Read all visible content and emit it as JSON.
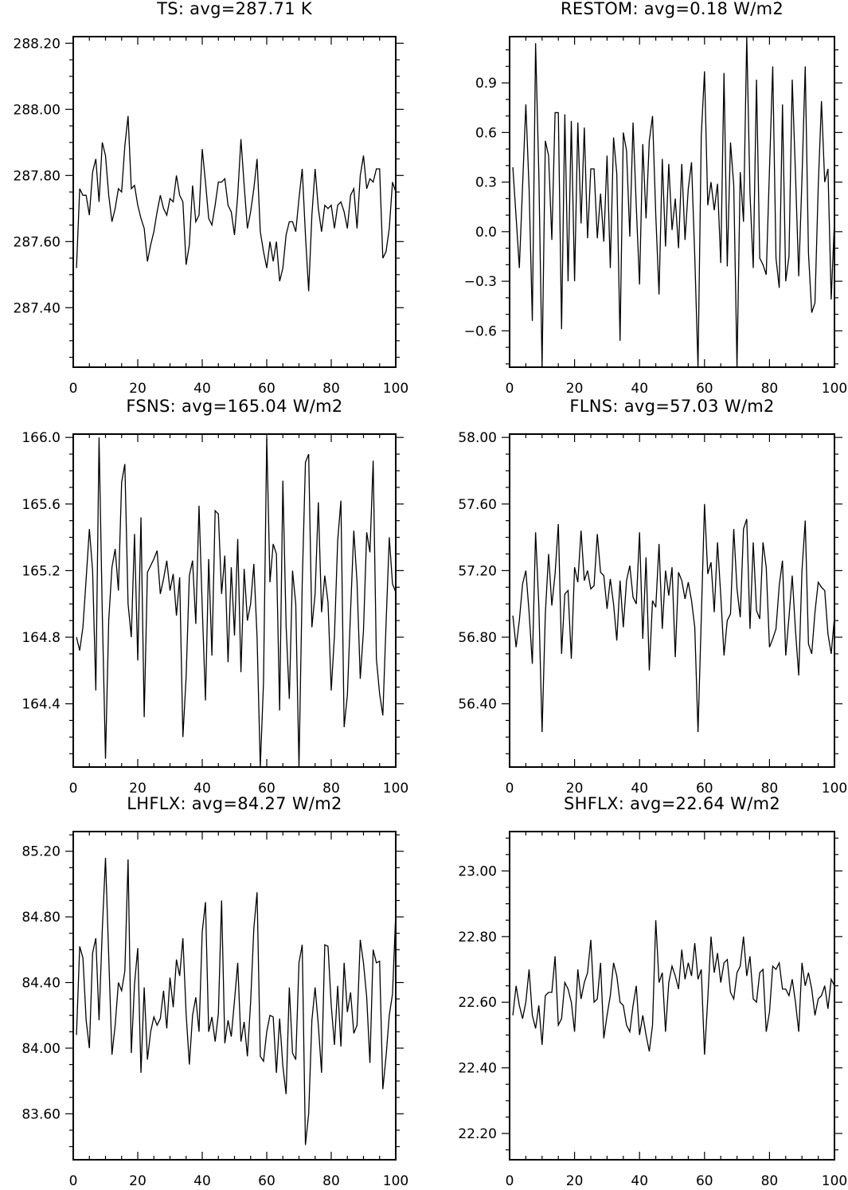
{
  "chart_data": [
    {
      "type": "line",
      "title": "TS: avg=287.71 K",
      "xlabel": "",
      "ylabel": "",
      "xlim": [
        0,
        100
      ],
      "ylim": [
        287.22,
        288.22
      ],
      "xticks": [
        0,
        20,
        40,
        60,
        80,
        100
      ],
      "xtick_labels": [
        "0",
        "20",
        "40",
        "60",
        "80",
        "100"
      ],
      "xminor": 5,
      "yticks": [
        287.4,
        287.6,
        287.8,
        288.0,
        288.2
      ],
      "ytick_labels": [
        "287.40",
        "287.60",
        "287.80",
        "288.00",
        "288.20"
      ],
      "yminor": 0.05,
      "grid": false,
      "series": [
        {
          "x_start": 1,
          "values": [
            287.52,
            287.76,
            287.74,
            287.74,
            287.68,
            287.81,
            287.85,
            287.72,
            287.9,
            287.86,
            287.74,
            287.66,
            287.7,
            287.76,
            287.75,
            287.89,
            287.98,
            287.76,
            287.77,
            287.71,
            287.67,
            287.64,
            287.54,
            287.59,
            287.63,
            287.69,
            287.74,
            287.7,
            287.68,
            287.73,
            287.72,
            287.8,
            287.74,
            287.72,
            287.53,
            287.59,
            287.77,
            287.66,
            287.68,
            287.88,
            287.78,
            287.67,
            287.65,
            287.71,
            287.78,
            287.78,
            287.79,
            287.71,
            287.69,
            287.62,
            287.74,
            287.91,
            287.77,
            287.64,
            287.69,
            287.76,
            287.85,
            287.63,
            287.57,
            287.52,
            287.6,
            287.54,
            287.6,
            287.48,
            287.52,
            287.62,
            287.66,
            287.66,
            287.63,
            287.73,
            287.82,
            287.62,
            287.45,
            287.68,
            287.82,
            287.7,
            287.63,
            287.71,
            287.7,
            287.71,
            287.64,
            287.71,
            287.72,
            287.69,
            287.64,
            287.74,
            287.76,
            287.64,
            287.8,
            287.86,
            287.76,
            287.79,
            287.78,
            287.82,
            287.82,
            287.55,
            287.57,
            287.64,
            287.78,
            287.75,
            287.81,
            287.64
          ]
        }
      ]
    },
    {
      "type": "line",
      "title": "RESTOM: avg=0.18 W/m2",
      "xlabel": "",
      "ylabel": "",
      "xlim": [
        0,
        100
      ],
      "ylim": [
        -0.82,
        1.18
      ],
      "xticks": [
        0,
        20,
        40,
        60,
        80,
        100
      ],
      "xtick_labels": [
        "0",
        "20",
        "40",
        "60",
        "80",
        "100"
      ],
      "xminor": 5,
      "yticks": [
        -0.6,
        -0.3,
        0.0,
        0.3,
        0.6,
        0.9
      ],
      "ytick_labels": [
        "−0.6",
        "−0.3",
        "0.0",
        "0.3",
        "0.6",
        "0.9"
      ],
      "yminor": 0.1,
      "grid": false,
      "series": [
        {
          "x_start": 1,
          "values": [
            0.39,
            0.09,
            -0.22,
            0.28,
            0.77,
            0.26,
            -0.54,
            1.14,
            0.35,
            -0.82,
            0.55,
            0.46,
            -0.05,
            0.72,
            0.72,
            -0.59,
            0.71,
            -0.3,
            0.67,
            -0.3,
            0.66,
            0.05,
            0.63,
            -0.04,
            0.38,
            0.38,
            -0.04,
            0.23,
            -0.06,
            0.46,
            -0.22,
            0.57,
            0.35,
            -0.66,
            0.6,
            0.49,
            -0.03,
            0.66,
            0.15,
            -0.32,
            0.53,
            0.08,
            0.55,
            0.7,
            0.1,
            -0.38,
            0.44,
            -0.09,
            0.41,
            0.01,
            0.2,
            -0.1,
            0.41,
            -0.05,
            0.26,
            0.42,
            -0.15,
            -0.82,
            0.58,
            0.97,
            0.16,
            0.3,
            0.13,
            0.29,
            -0.19,
            0.96,
            -0.21,
            0.54,
            0.28,
            -0.82,
            0.36,
            0.06,
            1.18,
            0.23,
            -0.22,
            0.92,
            -0.16,
            -0.2,
            -0.26,
            0.38,
            1.0,
            -0.16,
            -0.34,
            0.77,
            -0.3,
            -0.15,
            0.92,
            0.35,
            -0.27,
            0.32,
            1.0,
            -0.13,
            -0.49,
            -0.43,
            0.27,
            0.79,
            0.3,
            0.38,
            -0.41,
            0.07,
            0.23
          ]
        }
      ]
    },
    {
      "type": "line",
      "title": "FSNS: avg=165.04 W/m2",
      "xlabel": "",
      "ylabel": "",
      "xlim": [
        0,
        100
      ],
      "ylim": [
        164.02,
        166.02
      ],
      "xticks": [
        0,
        20,
        40,
        60,
        80,
        100
      ],
      "xtick_labels": [
        "0",
        "20",
        "40",
        "60",
        "80",
        "100"
      ],
      "xminor": 5,
      "yticks": [
        164.4,
        164.8,
        165.2,
        165.6,
        166.0
      ],
      "ytick_labels": [
        "164.4",
        "164.8",
        "165.2",
        "165.6",
        "166.0"
      ],
      "yminor": 0.1,
      "grid": false,
      "series": [
        {
          "x_start": 1,
          "values": [
            164.8,
            164.72,
            164.86,
            165.15,
            165.45,
            165.2,
            164.48,
            166.0,
            164.95,
            164.07,
            164.9,
            165.22,
            165.33,
            165.08,
            165.73,
            165.84,
            165.0,
            164.8,
            165.42,
            164.66,
            165.52,
            164.32,
            165.19,
            165.23,
            165.27,
            165.32,
            165.06,
            165.15,
            165.26,
            165.08,
            165.18,
            164.93,
            165.16,
            164.2,
            164.56,
            165.17,
            165.26,
            164.88,
            165.59,
            164.98,
            164.42,
            165.27,
            164.69,
            165.56,
            165.54,
            165.06,
            165.29,
            164.65,
            165.22,
            164.81,
            165.39,
            164.59,
            165.21,
            164.9,
            165.0,
            165.24,
            164.8,
            164.02,
            164.53,
            166.0,
            165.13,
            165.36,
            165.3,
            164.36,
            165.74,
            164.87,
            164.43,
            165.2,
            165.0,
            164.02,
            165.12,
            165.85,
            165.9,
            164.86,
            165.06,
            165.61,
            164.95,
            165.17,
            165.01,
            164.48,
            164.81,
            165.38,
            165.62,
            164.26,
            164.45,
            164.96,
            165.44,
            165.13,
            164.55,
            164.84,
            165.43,
            165.31,
            165.86,
            164.67,
            164.46,
            164.33,
            164.88,
            165.4,
            165.12,
            165.07,
            164.67,
            164.89
          ]
        }
      ]
    },
    {
      "type": "line",
      "title": "FLNS: avg=57.03 W/m2",
      "xlabel": "",
      "ylabel": "",
      "xlim": [
        0,
        100
      ],
      "ylim": [
        56.02,
        58.02
      ],
      "xticks": [
        0,
        20,
        40,
        60,
        80,
        100
      ],
      "xtick_labels": [
        "0",
        "20",
        "40",
        "60",
        "80",
        "100"
      ],
      "xminor": 5,
      "yticks": [
        56.4,
        56.8,
        57.2,
        57.6,
        58.0
      ],
      "ytick_labels": [
        "56.40",
        "56.80",
        "57.20",
        "57.60",
        "58.00"
      ],
      "yminor": 0.1,
      "grid": false,
      "series": [
        {
          "x_start": 1,
          "values": [
            56.93,
            56.74,
            56.9,
            57.12,
            57.2,
            56.95,
            56.64,
            57.43,
            56.99,
            56.23,
            56.94,
            57.3,
            56.99,
            57.18,
            57.48,
            56.7,
            57.06,
            57.08,
            56.67,
            57.22,
            57.13,
            57.44,
            57.14,
            57.2,
            57.09,
            57.11,
            57.42,
            57.19,
            57.17,
            56.97,
            57.15,
            57.0,
            56.78,
            57.14,
            56.86,
            57.14,
            57.23,
            57.04,
            57.0,
            57.43,
            56.79,
            57.28,
            56.6,
            57.02,
            56.98,
            57.36,
            56.85,
            57.2,
            57.05,
            57.22,
            56.68,
            57.19,
            57.14,
            57.03,
            57.13,
            57.02,
            56.86,
            56.23,
            56.91,
            57.6,
            57.18,
            57.25,
            56.95,
            57.37,
            57.05,
            56.69,
            56.9,
            56.94,
            57.45,
            57.09,
            56.92,
            57.45,
            57.51,
            56.85,
            57.37,
            56.96,
            56.91,
            57.37,
            57.22,
            56.74,
            56.79,
            56.85,
            57.11,
            57.26,
            56.69,
            56.92,
            57.17,
            56.84,
            56.57,
            57.2,
            57.5,
            56.76,
            56.7,
            56.95,
            57.13,
            57.1,
            57.08,
            56.82,
            56.7,
            56.92
          ]
        }
      ]
    },
    {
      "type": "line",
      "title": "LHFLX: avg=84.27 W/m2",
      "xlabel": "",
      "ylabel": "",
      "xlim": [
        0,
        100
      ],
      "ylim": [
        83.32,
        85.32
      ],
      "xticks": [
        0,
        20,
        40,
        60,
        80,
        100
      ],
      "xtick_labels": [
        "0",
        "20",
        "40",
        "60",
        "80",
        "100"
      ],
      "xminor": 5,
      "yticks": [
        83.6,
        84.0,
        84.4,
        84.8,
        85.2
      ],
      "ytick_labels": [
        "83.60",
        "84.00",
        "84.40",
        "84.80",
        "85.20"
      ],
      "yminor": 0.1,
      "grid": false,
      "series": [
        {
          "x_start": 1,
          "values": [
            84.08,
            84.62,
            84.55,
            84.17,
            84.0,
            84.58,
            84.67,
            84.17,
            84.72,
            85.16,
            84.56,
            83.96,
            84.14,
            84.4,
            84.35,
            84.47,
            85.15,
            83.97,
            84.39,
            84.61,
            83.85,
            84.37,
            83.93,
            84.1,
            84.19,
            84.14,
            84.18,
            84.35,
            84.12,
            84.43,
            84.25,
            84.54,
            84.44,
            84.67,
            84.21,
            83.9,
            84.2,
            84.31,
            84.1,
            84.71,
            84.89,
            84.1,
            84.19,
            84.04,
            84.21,
            84.9,
            84.03,
            84.17,
            84.07,
            84.29,
            84.52,
            84.04,
            84.16,
            83.95,
            84.28,
            84.73,
            84.95,
            83.95,
            83.92,
            84.1,
            84.2,
            84.19,
            83.85,
            84.18,
            83.89,
            83.72,
            84.37,
            83.97,
            83.93,
            84.52,
            84.63,
            83.41,
            83.6,
            84.17,
            84.37,
            84.14,
            83.85,
            84.63,
            84.62,
            84.26,
            84.02,
            84.38,
            84.01,
            84.52,
            84.22,
            84.34,
            84.09,
            84.14,
            84.66,
            84.52,
            84.31,
            83.91,
            84.6,
            84.52,
            84.53,
            83.75,
            83.95,
            84.2,
            84.33,
            84.82,
            84.37
          ]
        }
      ]
    },
    {
      "type": "line",
      "title": "SHFLX: avg=22.64 W/m2",
      "xlabel": "",
      "ylabel": "",
      "xlim": [
        0,
        100
      ],
      "ylim": [
        22.12,
        23.12
      ],
      "xticks": [
        0,
        20,
        40,
        60,
        80,
        100
      ],
      "xtick_labels": [
        "0",
        "20",
        "40",
        "60",
        "80",
        "100"
      ],
      "xminor": 5,
      "yticks": [
        22.2,
        22.4,
        22.6,
        22.8,
        23.0
      ],
      "ytick_labels": [
        "22.20",
        "22.40",
        "22.60",
        "22.80",
        "23.00"
      ],
      "yminor": 0.05,
      "grid": false,
      "series": [
        {
          "x_start": 1,
          "values": [
            22.56,
            22.65,
            22.59,
            22.55,
            22.6,
            22.7,
            22.56,
            22.52,
            22.59,
            22.47,
            22.62,
            22.63,
            22.63,
            22.74,
            22.53,
            22.55,
            22.66,
            22.64,
            22.6,
            22.51,
            22.7,
            22.61,
            22.66,
            22.69,
            22.79,
            22.6,
            22.61,
            22.72,
            22.49,
            22.56,
            22.62,
            22.72,
            22.68,
            22.6,
            22.59,
            22.53,
            22.51,
            22.59,
            22.65,
            22.5,
            22.56,
            22.5,
            22.45,
            22.53,
            22.85,
            22.66,
            22.69,
            22.51,
            22.66,
            22.71,
            22.68,
            22.64,
            22.76,
            22.67,
            22.72,
            22.68,
            22.78,
            22.67,
            22.7,
            22.44,
            22.61,
            22.8,
            22.69,
            22.75,
            22.66,
            22.72,
            22.73,
            22.63,
            22.61,
            22.69,
            22.71,
            22.8,
            22.68,
            22.74,
            22.61,
            22.6,
            22.69,
            22.7,
            22.51,
            22.57,
            22.71,
            22.7,
            22.72,
            22.64,
            22.64,
            22.62,
            22.67,
            22.6,
            22.51,
            22.72,
            22.65,
            22.69,
            22.64,
            22.56,
            22.61,
            22.62,
            22.65,
            22.58,
            22.67,
            22.65
          ]
        }
      ]
    }
  ]
}
